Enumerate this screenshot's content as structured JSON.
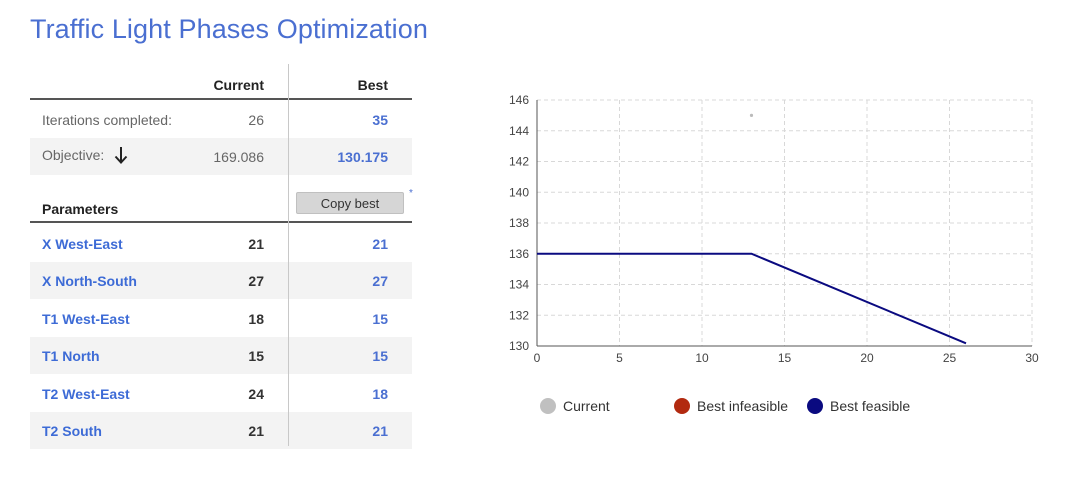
{
  "title": "Traffic Light Phases Optimization",
  "table": {
    "col_current": "Current",
    "col_best": "Best",
    "iterations": {
      "label": "Iterations completed:",
      "current": "26",
      "best": "35"
    },
    "objective": {
      "label": "Objective:",
      "current": "169.086",
      "best": "130.175",
      "direction_icon": "arrow-down-icon"
    },
    "parameters_header": "Parameters",
    "copy_best_label": "Copy best",
    "star": "*",
    "params": [
      {
        "name": "X West-East",
        "current": "21",
        "best": "21"
      },
      {
        "name": "X North-South",
        "current": "27",
        "best": "27"
      },
      {
        "name": "T1 West-East",
        "current": "18",
        "best": "15"
      },
      {
        "name": "T1 North",
        "current": "15",
        "best": "15"
      },
      {
        "name": "T2 West-East",
        "current": "24",
        "best": "18"
      },
      {
        "name": "T2 South",
        "current": "21",
        "best": "21"
      }
    ]
  },
  "chart_data": {
    "type": "line",
    "xlim": [
      0,
      30
    ],
    "ylim": [
      130,
      146
    ],
    "x_ticks": [
      "0",
      "5",
      "10",
      "15",
      "20",
      "25",
      "30"
    ],
    "y_ticks": [
      "130",
      "132",
      "134",
      "136",
      "138",
      "140",
      "142",
      "144",
      "146"
    ],
    "grid": true,
    "series": [
      {
        "name": "Best feasible",
        "color": "#0a0a80",
        "x": [
          0,
          13,
          26
        ],
        "y": [
          136,
          136,
          130.175
        ]
      },
      {
        "name": "Current",
        "color": "#bbbbbb",
        "type": "scatter",
        "x": [
          13
        ],
        "y": [
          145
        ]
      }
    ],
    "legend": [
      {
        "label": "Current",
        "color": "#c0c0c0"
      },
      {
        "label": "Best infeasible",
        "color": "#b22a10"
      },
      {
        "label": "Best feasible",
        "color": "#0a0a80"
      }
    ],
    "legend_position": "bottom"
  }
}
